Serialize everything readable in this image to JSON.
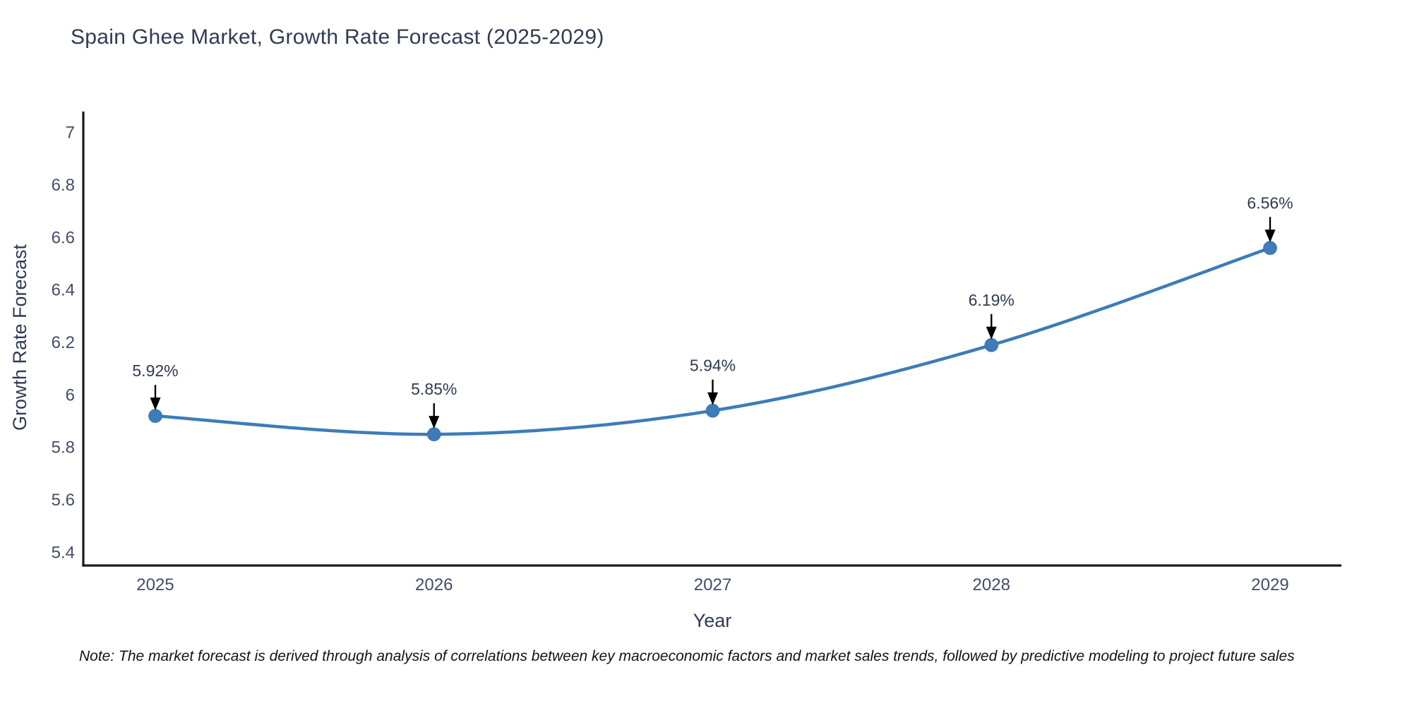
{
  "title": "Spain Ghee Market, Growth Rate Forecast (2025-2029)",
  "note": "Note: The market forecast is derived through analysis of correlations between key macroeconomic factors and market sales trends, followed by predictive modeling to project future sales",
  "chart_data": {
    "type": "line",
    "title": "Spain Ghee Market, Growth Rate Forecast (2025-2029)",
    "x": [
      2025,
      2026,
      2027,
      2028,
      2029
    ],
    "values": [
      5.92,
      5.85,
      5.94,
      6.19,
      6.56
    ],
    "point_labels": [
      "5.92%",
      "5.85%",
      "5.94%",
      "6.19%",
      "6.56%"
    ],
    "xlabel": "Year",
    "ylabel": "Growth Rate Forecast",
    "ylim": [
      5.35,
      7.08
    ],
    "yticks": [
      5.4,
      5.6,
      5.8,
      6.0,
      6.2,
      6.4,
      6.6,
      6.8,
      7.0
    ],
    "line_shape": "spline",
    "grid": false,
    "legend": "none",
    "colors": {
      "line": "#3d7cb8",
      "marker": "#3d7cb8",
      "marker_edge": "#306396",
      "axis": "#161a21",
      "title_text": "#2f3b52",
      "tick_text": "#424e66",
      "annotation_text": "#2f3b52",
      "annotation_arrow": "#000000"
    }
  }
}
